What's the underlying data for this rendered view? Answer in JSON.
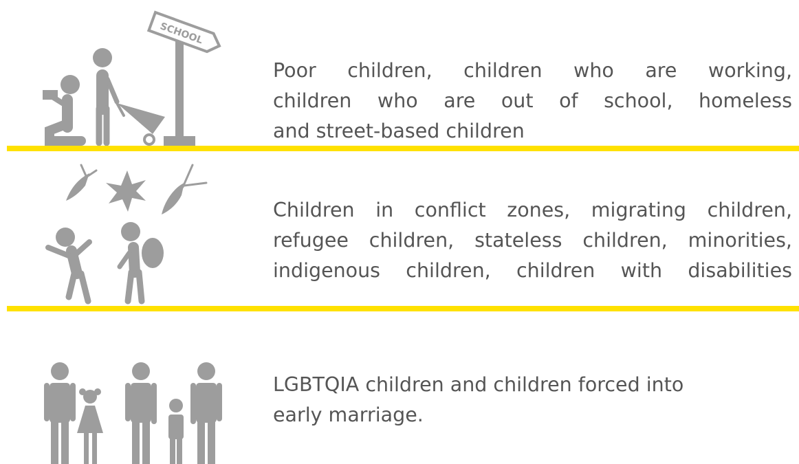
{
  "rows": [
    {
      "sign": "SCHOOL",
      "lines": [
        "Poor children, children who are working,",
        "children who are out of school, homeless",
        "and street-based children"
      ]
    },
    {
      "lines": [
        "Children in conflict zones, migrating children,",
        "refugee children, stateless children, minorities,",
        "indigenous children, children with disabilities"
      ]
    },
    {
      "lines": [
        "LGBTQIA children and children forced into",
        "early marriage."
      ]
    }
  ]
}
